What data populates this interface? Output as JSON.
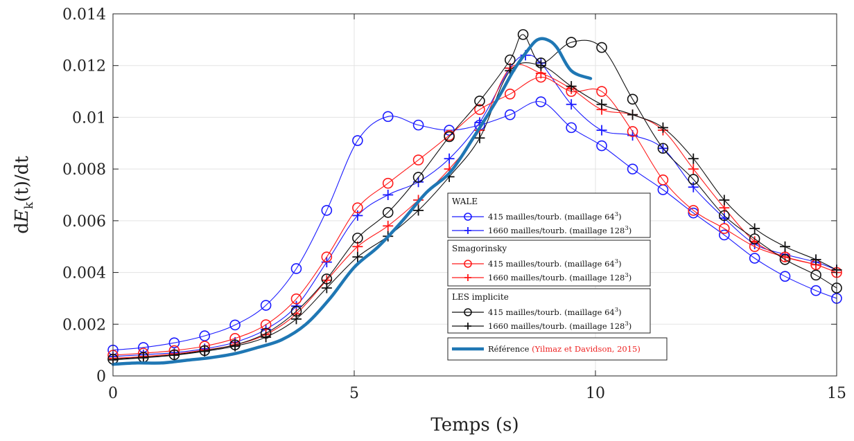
{
  "chart_data": {
    "type": "line",
    "xlabel": "Temps (s)",
    "ylabel": "dE_k(t)/dt",
    "xlim": [
      0,
      15
    ],
    "ylim": [
      0,
      0.014
    ],
    "xticks": [
      "0",
      "5",
      "10",
      "15"
    ],
    "yticks": [
      "0",
      "0.002",
      "0.004",
      "0.006",
      "0.008",
      "0.01",
      "0.012",
      "0.014"
    ],
    "grid": true,
    "legend_position": "center-right",
    "legend_groups": [
      {
        "title": "WALE",
        "entries": [
          {
            "label": "415 mailles/tourb. (maillage 64",
            "sup": "3",
            "tail": ")",
            "series": 0
          },
          {
            "label": "1660 mailles/tourb. (maillage 128",
            "sup": "3",
            "tail": ")",
            "series": 1
          }
        ]
      },
      {
        "title": "Smagorinsky",
        "entries": [
          {
            "label": "415 mailles/tourb. (maillage 64",
            "sup": "3",
            "tail": ")",
            "series": 2
          },
          {
            "label": "1660 mailles/tourb. (maillage 128",
            "sup": "3",
            "tail": ")",
            "series": 3
          }
        ]
      },
      {
        "title": "LES implicite",
        "entries": [
          {
            "label": "415 mailles/tourb. (maillage 64",
            "sup": "3",
            "tail": ")",
            "series": 4
          },
          {
            "label": "1660 mailles/tourb. (maillage 128",
            "sup": "3",
            "tail": ")",
            "series": 5
          }
        ]
      }
    ],
    "reference_legend": {
      "label": "Référence",
      "citation": "(Yilmaz et Davidson, 2015)",
      "citation_color": "#ee2222",
      "series": 6
    },
    "series": [
      {
        "color": "#1a1aff",
        "marker": "circle",
        "x": [
          0,
          0.63,
          1.27,
          1.9,
          2.53,
          3.17,
          3.8,
          4.43,
          5.07,
          5.7,
          6.33,
          6.97,
          7.6,
          8.23,
          8.87,
          9.5,
          10.13,
          10.77,
          11.4,
          12.03,
          12.67,
          13.3,
          13.93,
          14.57,
          15
        ],
        "y": [
          0.001,
          0.0011,
          0.00128,
          0.00155,
          0.00197,
          0.00273,
          0.00415,
          0.0064,
          0.0091,
          0.01003,
          0.0097,
          0.0095,
          0.0097,
          0.0101,
          0.0106,
          0.0096,
          0.0089,
          0.008,
          0.0072,
          0.0063,
          0.00545,
          0.00455,
          0.00385,
          0.0033,
          0.003
        ]
      },
      {
        "color": "#1a1aff",
        "marker": "plus",
        "x": [
          0,
          0.63,
          1.27,
          1.9,
          2.53,
          3.17,
          3.8,
          4.43,
          5.07,
          5.7,
          6.33,
          6.97,
          7.6,
          8.23,
          8.55,
          8.87,
          9.5,
          10.13,
          10.77,
          11.4,
          12.03,
          12.67,
          13.3,
          13.93,
          14.57,
          15
        ],
        "y": [
          0.00075,
          0.00082,
          0.0009,
          0.00105,
          0.0013,
          0.0018,
          0.0027,
          0.0044,
          0.0062,
          0.007,
          0.0075,
          0.0084,
          0.0098,
          0.0119,
          0.0124,
          0.0121,
          0.0105,
          0.0095,
          0.0093,
          0.0088,
          0.0073,
          0.0061,
          0.0051,
          0.0047,
          0.0044,
          0.0041
        ]
      },
      {
        "color": "#ff1a1a",
        "marker": "circle",
        "x": [
          0,
          0.63,
          1.27,
          1.9,
          2.53,
          3.17,
          3.8,
          4.43,
          5.07,
          5.7,
          6.33,
          6.97,
          7.6,
          8.23,
          8.87,
          9.5,
          10.13,
          10.77,
          11.4,
          12.03,
          12.67,
          13.3,
          13.93,
          14.57,
          15
        ],
        "y": [
          0.0008,
          0.00088,
          0.00098,
          0.00115,
          0.00145,
          0.00198,
          0.00298,
          0.0046,
          0.0065,
          0.00745,
          0.00835,
          0.0093,
          0.0103,
          0.0109,
          0.01155,
          0.011,
          0.011,
          0.00945,
          0.00758,
          0.0064,
          0.0057,
          0.005,
          0.0046,
          0.0043,
          0.004
        ]
      },
      {
        "color": "#ff1a1a",
        "marker": "plus",
        "x": [
          0,
          0.63,
          1.27,
          1.9,
          2.53,
          3.17,
          3.8,
          4.43,
          5.07,
          5.7,
          6.33,
          6.97,
          7.6,
          8.23,
          8.87,
          9.5,
          10.13,
          10.77,
          11.4,
          12.03,
          12.67,
          13.3,
          13.93,
          14.57,
          15
        ],
        "y": [
          0.00068,
          0.00075,
          0.00085,
          0.001,
          0.0012,
          0.0016,
          0.0024,
          0.0037,
          0.005,
          0.0058,
          0.0068,
          0.008,
          0.0095,
          0.0119,
          0.0117,
          0.0111,
          0.0103,
          0.0101,
          0.0095,
          0.008,
          0.0065,
          0.0052,
          0.0046,
          0.0043,
          0.004
        ]
      },
      {
        "color": "#111111",
        "marker": "circle",
        "x": [
          0,
          0.63,
          1.27,
          1.9,
          2.53,
          3.17,
          3.8,
          4.43,
          5.07,
          5.7,
          6.33,
          6.97,
          7.6,
          8.23,
          8.5,
          8.87,
          9.5,
          10.13,
          10.77,
          11.4,
          12.03,
          12.67,
          13.3,
          13.93,
          14.57,
          15
        ],
        "y": [
          0.00065,
          0.00072,
          0.00082,
          0.00098,
          0.0012,
          0.00165,
          0.0025,
          0.00375,
          0.00533,
          0.00632,
          0.00768,
          0.00925,
          0.01063,
          0.01222,
          0.0132,
          0.0121,
          0.0129,
          0.0127,
          0.0107,
          0.0088,
          0.0076,
          0.0062,
          0.0053,
          0.0045,
          0.0039,
          0.0034
        ]
      },
      {
        "color": "#111111",
        "marker": "plus",
        "x": [
          0,
          0.63,
          1.27,
          1.9,
          2.53,
          3.17,
          3.8,
          4.43,
          5.07,
          5.7,
          6.33,
          6.97,
          7.6,
          8.23,
          8.87,
          9.5,
          10.13,
          10.77,
          11.4,
          12.03,
          12.67,
          13.3,
          13.93,
          14.57,
          15
        ],
        "y": [
          0.00062,
          0.0007,
          0.0008,
          0.00095,
          0.00115,
          0.0015,
          0.0022,
          0.0034,
          0.0046,
          0.0054,
          0.0064,
          0.0077,
          0.0092,
          0.0118,
          0.012,
          0.0112,
          0.0105,
          0.0101,
          0.0096,
          0.0084,
          0.0068,
          0.0057,
          0.005,
          0.0045,
          0.0041
        ]
      },
      {
        "color": "#1f77b4",
        "marker": "none",
        "width": 4.5,
        "x": [
          0,
          0.5,
          1,
          1.5,
          2,
          2.5,
          3,
          3.5,
          4,
          4.5,
          5,
          5.5,
          6,
          6.5,
          7,
          7.5,
          8,
          8.3,
          8.6,
          8.8,
          9.0,
          9.2,
          9.5,
          9.9
        ],
        "y": [
          0.00045,
          0.0005,
          0.0005,
          0.0006,
          0.0007,
          0.00085,
          0.0011,
          0.0014,
          0.002,
          0.003,
          0.0042,
          0.005,
          0.006,
          0.0071,
          0.0079,
          0.0093,
          0.0108,
          0.0118,
          0.0126,
          0.013,
          0.013,
          0.0127,
          0.0118,
          0.0115
        ]
      }
    ]
  }
}
